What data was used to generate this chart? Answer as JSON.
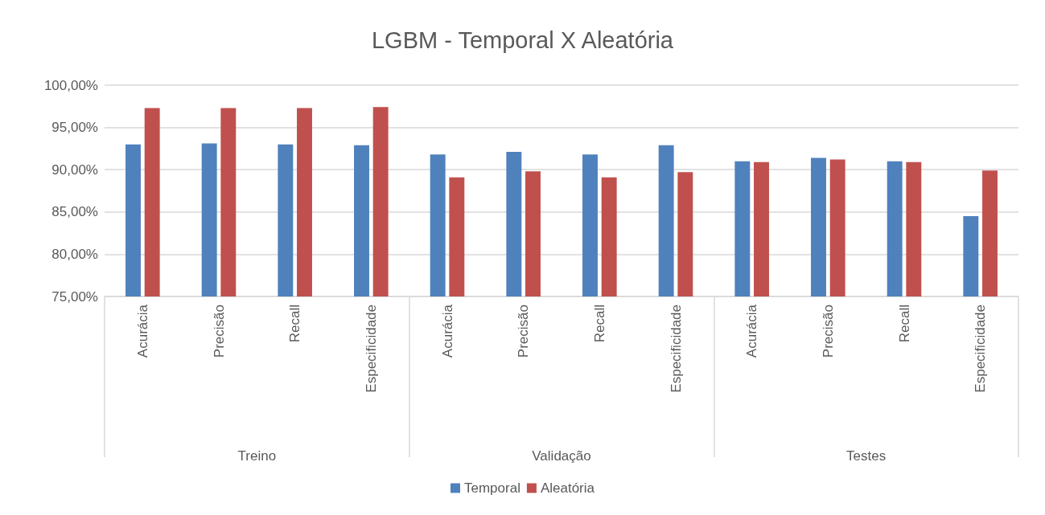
{
  "chart_data": {
    "type": "bar",
    "title": "LGBM - Temporal X Aleatória",
    "categories": [
      "Acurácia",
      "Precisão",
      "Recall",
      "Especificidade",
      "Acurácia",
      "Precisão",
      "Recall",
      "Especificidade",
      "Acurácia",
      "Precisão",
      "Recall",
      "Especificidade"
    ],
    "series": [
      {
        "name": "Temporal",
        "color": "#4f81bd",
        "values": [
          93.0,
          93.1,
          93.0,
          92.9,
          91.8,
          92.1,
          91.8,
          92.9,
          91.0,
          91.4,
          91.0,
          84.5
        ]
      },
      {
        "name": "Aleatória",
        "color": "#c0504d",
        "values": [
          97.3,
          97.3,
          97.3,
          97.4,
          89.1,
          89.8,
          89.1,
          89.7,
          90.9,
          91.2,
          90.9,
          89.9
        ]
      }
    ],
    "annotations": [
      "Treino",
      "Validação",
      "Testes"
    ],
    "ylim": [
      75,
      100
    ],
    "yticks": [
      {
        "value": 75,
        "label": "75,00%"
      },
      {
        "value": 80,
        "label": "80,00%"
      },
      {
        "value": 85,
        "label": "85,00%"
      },
      {
        "value": 90,
        "label": "90,00%"
      },
      {
        "value": 95,
        "label": "95,00%"
      },
      {
        "value": 100,
        "label": "100,00%"
      }
    ],
    "grid": "y",
    "legend": "bottom"
  }
}
